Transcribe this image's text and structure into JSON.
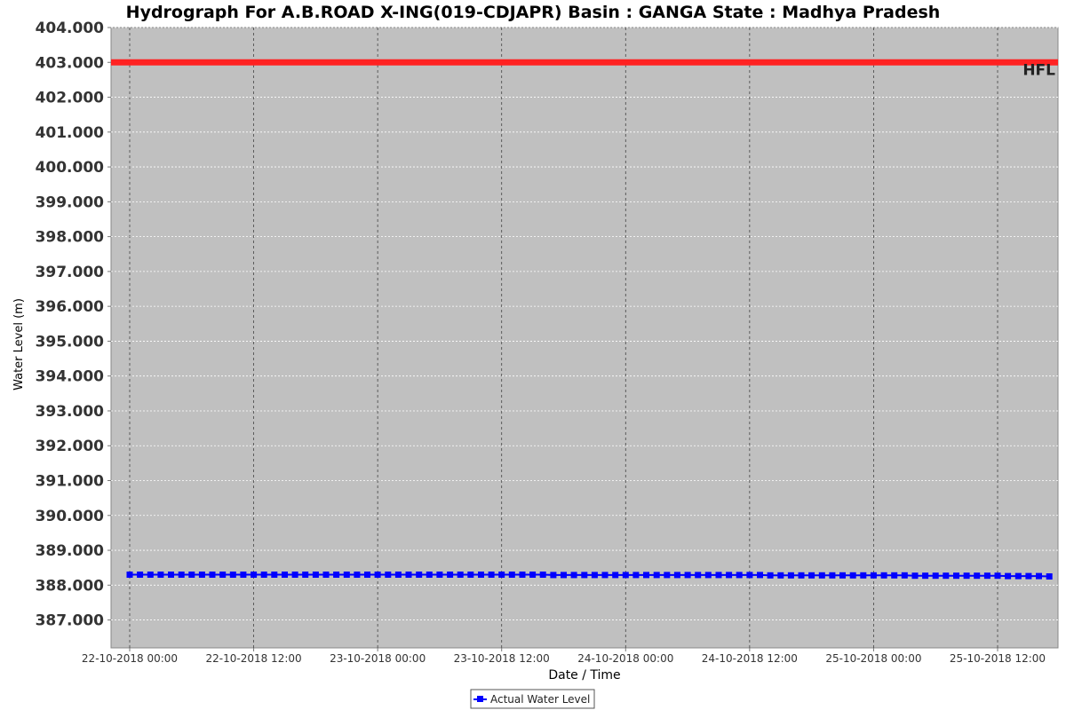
{
  "chart_data": {
    "type": "line",
    "title": "Hydrograph For A.B.ROAD X-ING(019-CDJAPR) Basin : GANGA State : Madhya Pradesh",
    "xlabel": "Date / Time",
    "ylabel": "Water Level (m)",
    "ylim": [
      386.2,
      404.0
    ],
    "xlim": [
      "22-10-2018 00:00",
      "25-10-2018 19:30"
    ],
    "yticks": [
      "404.000",
      "403.000",
      "402.000",
      "401.000",
      "400.000",
      "399.000",
      "398.000",
      "397.000",
      "396.000",
      "395.000",
      "394.000",
      "393.000",
      "392.000",
      "391.000",
      "390.000",
      "389.000",
      "388.000",
      "387.000"
    ],
    "xticks": [
      "22-10-2018 00:00",
      "22-10-2018 12:00",
      "23-10-2018 00:00",
      "23-10-2018 12:00",
      "24-10-2018 00:00",
      "24-10-2018 12:00",
      "25-10-2018 00:00",
      "25-10-2018 12:00"
    ],
    "grid": true,
    "legend_position": "bottom-center",
    "reference_lines": [
      {
        "name": "HFL",
        "value": 403.0,
        "color": "#ff2222"
      }
    ],
    "series": [
      {
        "name": "Actual Water Level",
        "color": "#0000ff",
        "marker": "square",
        "x_start": "22-10-2018 00:00",
        "x_step_hours": 1,
        "values": [
          388.3,
          388.3,
          388.3,
          388.3,
          388.3,
          388.3,
          388.3,
          388.3,
          388.3,
          388.3,
          388.3,
          388.3,
          388.3,
          388.3,
          388.3,
          388.3,
          388.3,
          388.3,
          388.3,
          388.3,
          388.3,
          388.3,
          388.3,
          388.3,
          388.3,
          388.3,
          388.3,
          388.3,
          388.3,
          388.3,
          388.3,
          388.3,
          388.3,
          388.3,
          388.3,
          388.3,
          388.3,
          388.3,
          388.3,
          388.3,
          388.3,
          388.29,
          388.29,
          388.29,
          388.29,
          388.29,
          388.29,
          388.29,
          388.29,
          388.29,
          388.29,
          388.29,
          388.29,
          388.29,
          388.29,
          388.29,
          388.29,
          388.29,
          388.29,
          388.29,
          388.29,
          388.29,
          388.28,
          388.28,
          388.28,
          388.28,
          388.28,
          388.28,
          388.28,
          388.28,
          388.28,
          388.28,
          388.28,
          388.28,
          388.28,
          388.28,
          388.27,
          388.27,
          388.27,
          388.27,
          388.27,
          388.27,
          388.27,
          388.27,
          388.27,
          388.26,
          388.26,
          388.26,
          388.26,
          388.25
        ]
      }
    ]
  }
}
